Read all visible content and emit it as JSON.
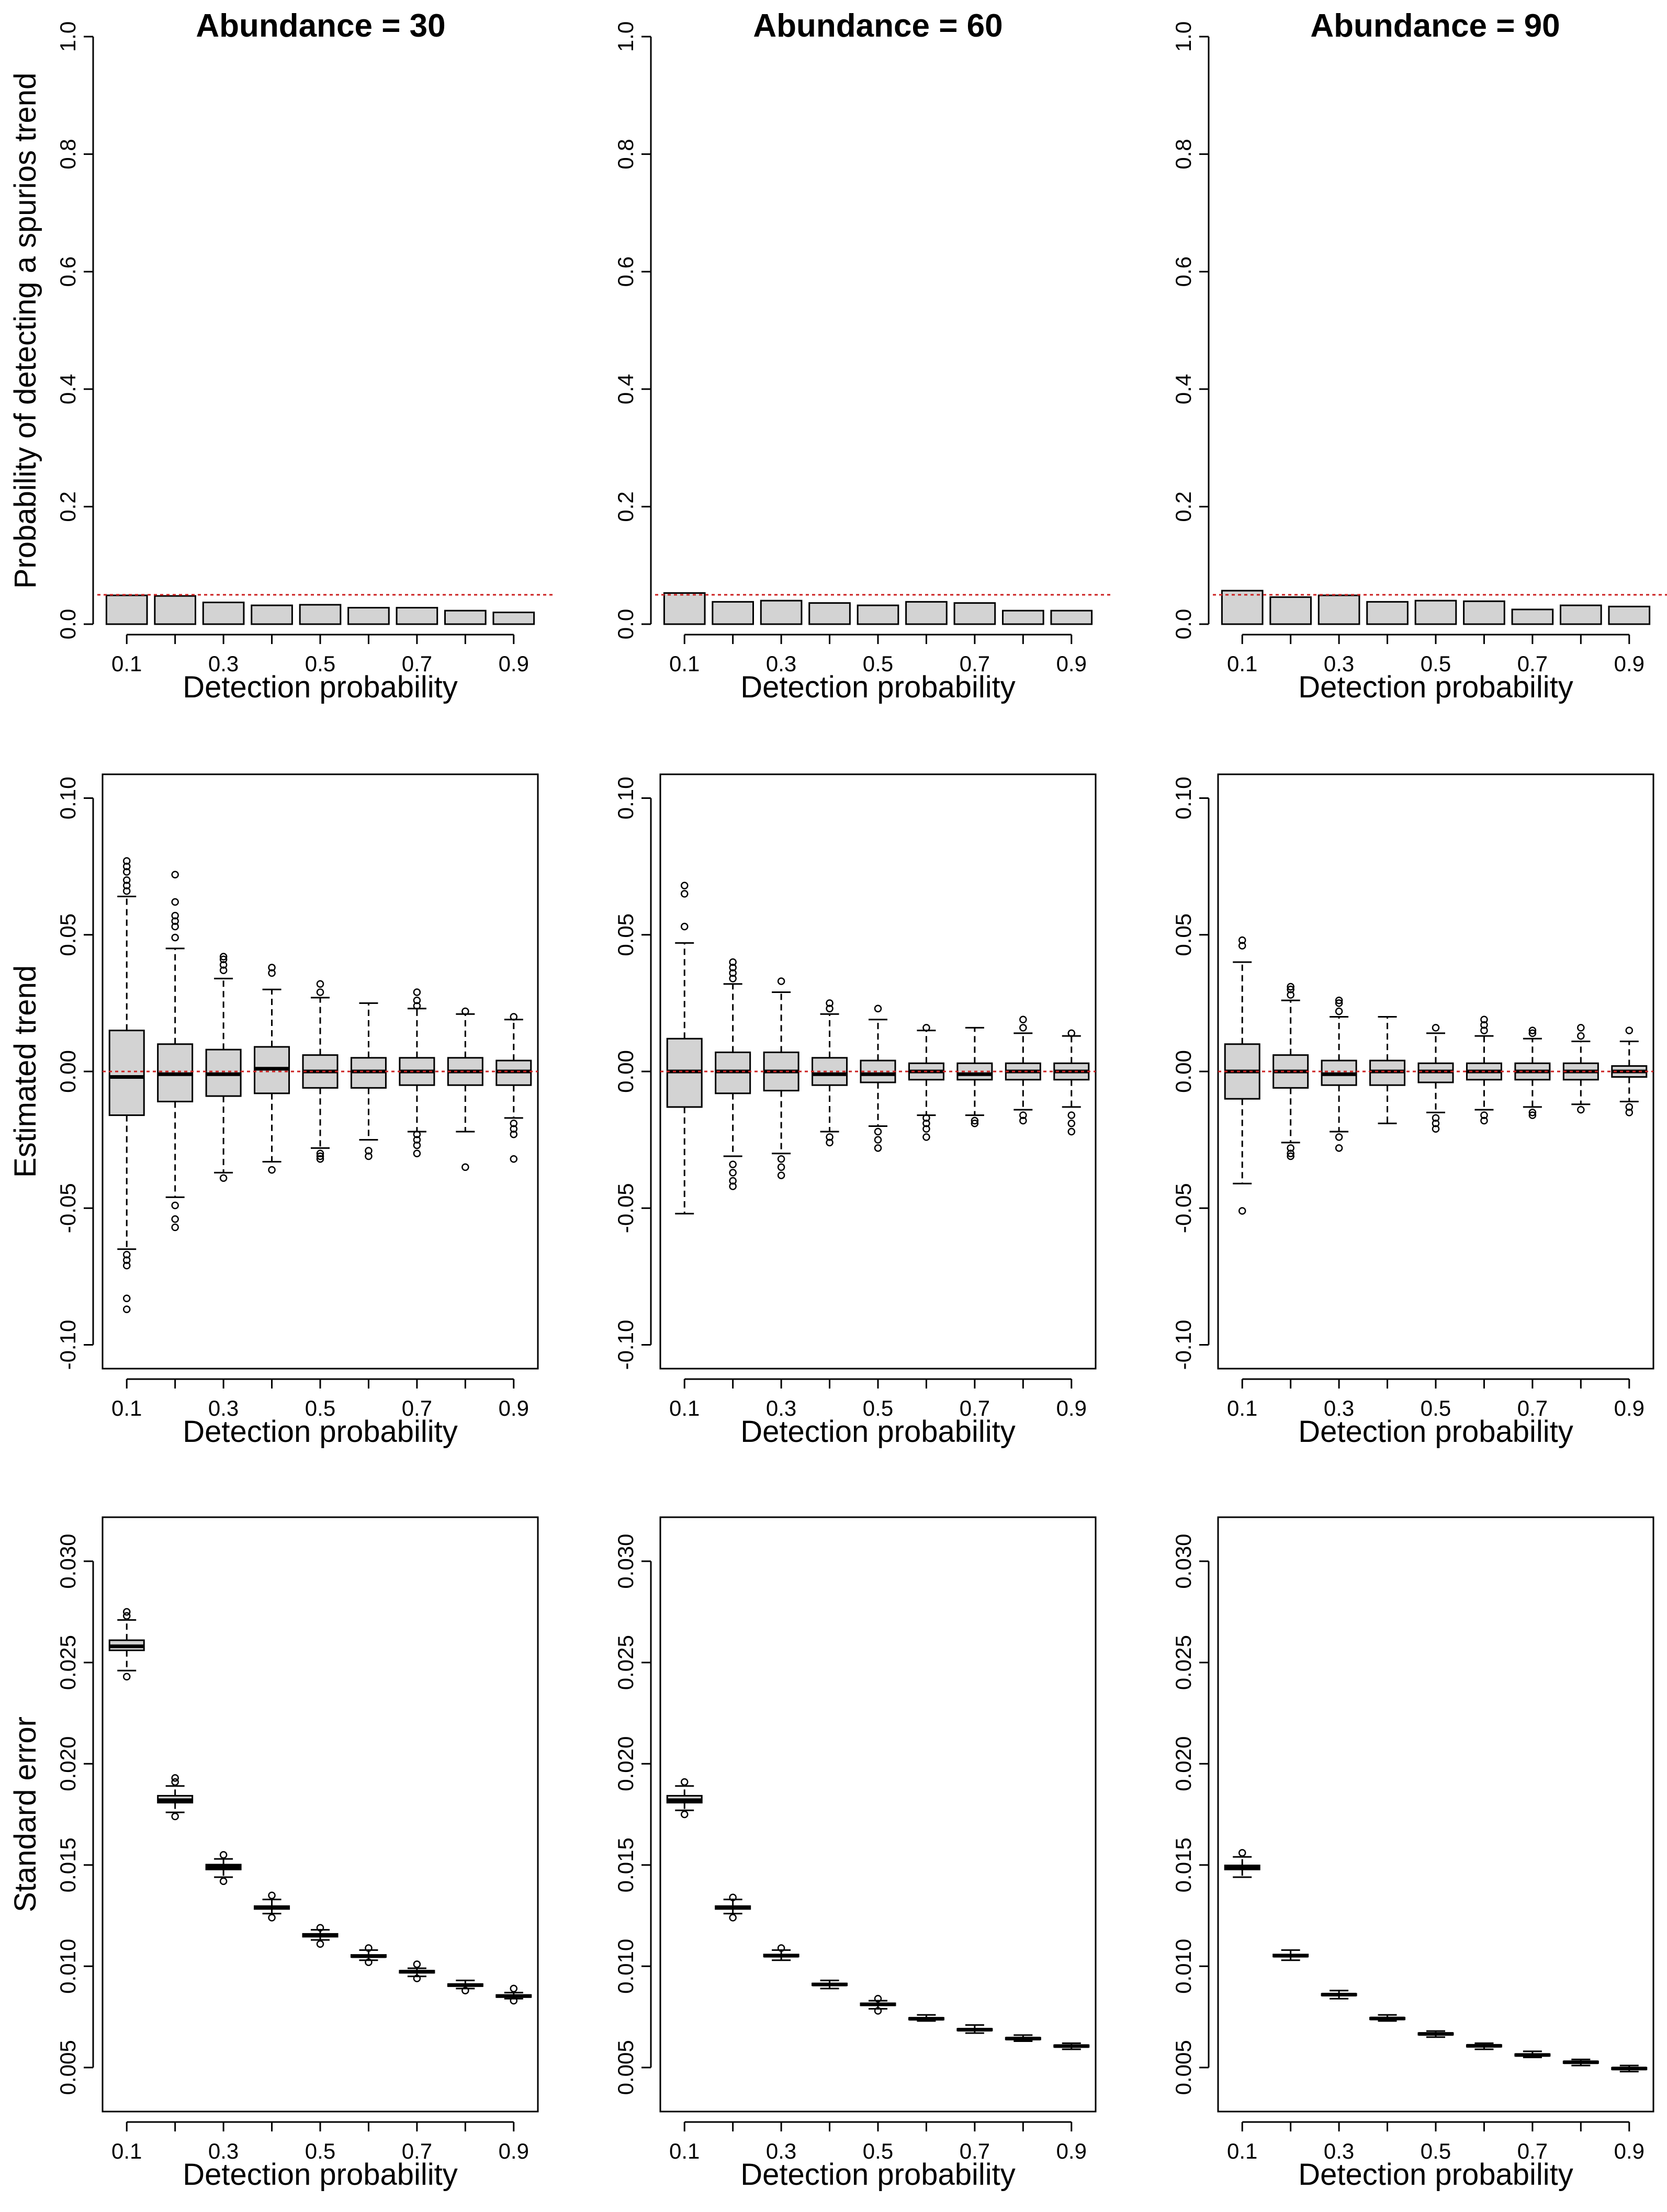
{
  "figure": {
    "column_titles": [
      "Abundance = 30",
      "Abundance = 60",
      "Abundance = 90"
    ],
    "row_ylabels": [
      "Probability of detecting a spurios trend",
      "Estimated trend",
      "Standard error"
    ],
    "xlabel": "Detection probability"
  },
  "colors": {
    "box_fill": "#d3d3d3",
    "reference_line": "#cc2222",
    "ink": "#000000"
  },
  "chart_data": [
    {
      "type": "bar",
      "row": 0,
      "col": 0,
      "title": "Abundance = 30",
      "xlabel": "Detection probability",
      "ylabel": "Probability of detecting a spurios trend",
      "categories": [
        "0.1",
        "0.2",
        "0.3",
        "0.4",
        "0.5",
        "0.6",
        "0.7",
        "0.8",
        "0.9"
      ],
      "x_tick_labels": [
        "0.1",
        "0.3",
        "0.5",
        "0.7",
        "0.9"
      ],
      "values": [
        0.049,
        0.048,
        0.037,
        0.032,
        0.033,
        0.028,
        0.028,
        0.023,
        0.02
      ],
      "ylim": [
        0,
        1
      ],
      "yticks": [
        "0.0",
        "0.2",
        "0.4",
        "0.6",
        "0.8",
        "1.0"
      ],
      "ref_line": 0.05
    },
    {
      "type": "bar",
      "row": 0,
      "col": 1,
      "title": "Abundance = 60",
      "xlabel": "Detection probability",
      "ylabel": "",
      "categories": [
        "0.1",
        "0.2",
        "0.3",
        "0.4",
        "0.5",
        "0.6",
        "0.7",
        "0.8",
        "0.9"
      ],
      "x_tick_labels": [
        "0.1",
        "0.3",
        "0.5",
        "0.7",
        "0.9"
      ],
      "values": [
        0.053,
        0.038,
        0.04,
        0.036,
        0.032,
        0.038,
        0.036,
        0.023,
        0.023
      ],
      "ylim": [
        0,
        1
      ],
      "yticks": [
        "0.0",
        "0.2",
        "0.4",
        "0.6",
        "0.8",
        "1.0"
      ],
      "ref_line": 0.05
    },
    {
      "type": "bar",
      "row": 0,
      "col": 2,
      "title": "Abundance = 90",
      "xlabel": "Detection probability",
      "ylabel": "",
      "categories": [
        "0.1",
        "0.2",
        "0.3",
        "0.4",
        "0.5",
        "0.6",
        "0.7",
        "0.8",
        "0.9"
      ],
      "x_tick_labels": [
        "0.1",
        "0.3",
        "0.5",
        "0.7",
        "0.9"
      ],
      "values": [
        0.057,
        0.046,
        0.049,
        0.038,
        0.04,
        0.039,
        0.025,
        0.032,
        0.03
      ],
      "ylim": [
        0,
        1
      ],
      "yticks": [
        "0.0",
        "0.2",
        "0.4",
        "0.6",
        "0.8",
        "1.0"
      ],
      "ref_line": 0.05
    },
    {
      "type": "box",
      "row": 1,
      "col": 0,
      "xlabel": "Detection probability",
      "ylabel": "Estimated trend",
      "categories": [
        "0.1",
        "0.2",
        "0.3",
        "0.4",
        "0.5",
        "0.6",
        "0.7",
        "0.8",
        "0.9"
      ],
      "x_tick_labels": [
        "0.1",
        "0.3",
        "0.5",
        "0.7",
        "0.9"
      ],
      "ylim": [
        -0.1,
        0.1
      ],
      "yticks": [
        "-0.10",
        "-0.05",
        "0.00",
        "0.05",
        "0.10"
      ],
      "ref_line": 0,
      "boxes": [
        {
          "q1": -0.016,
          "median": -0.002,
          "q3": 0.015,
          "wlo": -0.065,
          "whi": 0.064,
          "out": [
            0.066,
            0.068,
            0.07,
            0.073,
            0.075,
            0.077,
            -0.067,
            -0.069,
            -0.071,
            -0.083,
            -0.087
          ]
        },
        {
          "q1": -0.011,
          "median": -0.001,
          "q3": 0.01,
          "wlo": -0.046,
          "whi": 0.045,
          "out": [
            0.049,
            0.053,
            0.055,
            0.057,
            0.062,
            0.072,
            -0.049,
            -0.054,
            -0.057
          ]
        },
        {
          "q1": -0.009,
          "median": -0.001,
          "q3": 0.008,
          "wlo": -0.037,
          "whi": 0.034,
          "out": [
            0.037,
            0.039,
            0.041,
            0.042,
            -0.039
          ]
        },
        {
          "q1": -0.008,
          "median": 0.001,
          "q3": 0.009,
          "wlo": -0.033,
          "whi": 0.03,
          "out": [
            0.036,
            0.038,
            -0.036
          ]
        },
        {
          "q1": -0.006,
          "median": 0.0,
          "q3": 0.006,
          "wlo": -0.028,
          "whi": 0.027,
          "out": [
            0.029,
            0.032,
            -0.03,
            -0.031,
            -0.032
          ]
        },
        {
          "q1": -0.006,
          "median": 0.0,
          "q3": 0.005,
          "wlo": -0.025,
          "whi": 0.025,
          "out": [
            -0.029,
            -0.031
          ]
        },
        {
          "q1": -0.005,
          "median": 0.0,
          "q3": 0.005,
          "wlo": -0.022,
          "whi": 0.023,
          "out": [
            0.024,
            0.026,
            0.029,
            -0.023,
            -0.025,
            -0.027,
            -0.03
          ]
        },
        {
          "q1": -0.005,
          "median": 0.0,
          "q3": 0.005,
          "wlo": -0.022,
          "whi": 0.021,
          "out": [
            0.022,
            -0.035
          ]
        },
        {
          "q1": -0.005,
          "median": 0.0,
          "q3": 0.004,
          "wlo": -0.017,
          "whi": 0.019,
          "out": [
            0.02,
            -0.019,
            -0.021,
            -0.023,
            -0.032
          ]
        }
      ]
    },
    {
      "type": "box",
      "row": 1,
      "col": 1,
      "xlabel": "Detection probability",
      "ylabel": "",
      "categories": [
        "0.1",
        "0.2",
        "0.3",
        "0.4",
        "0.5",
        "0.6",
        "0.7",
        "0.8",
        "0.9"
      ],
      "x_tick_labels": [
        "0.1",
        "0.3",
        "0.5",
        "0.7",
        "0.9"
      ],
      "ylim": [
        -0.1,
        0.1
      ],
      "yticks": [
        "-0.10",
        "-0.05",
        "0.00",
        "0.05",
        "0.10"
      ],
      "ref_line": 0,
      "boxes": [
        {
          "q1": -0.013,
          "median": 0.0,
          "q3": 0.012,
          "wlo": -0.052,
          "whi": 0.047,
          "out": [
            0.053,
            0.065,
            0.068
          ]
        },
        {
          "q1": -0.008,
          "median": 0.0,
          "q3": 0.007,
          "wlo": -0.031,
          "whi": 0.032,
          "out": [
            0.034,
            0.036,
            0.038,
            0.04,
            -0.034,
            -0.037,
            -0.04,
            -0.042
          ]
        },
        {
          "q1": -0.007,
          "median": 0.0,
          "q3": 0.007,
          "wlo": -0.03,
          "whi": 0.029,
          "out": [
            0.033,
            -0.032,
            -0.035,
            -0.038
          ]
        },
        {
          "q1": -0.005,
          "median": -0.001,
          "q3": 0.005,
          "wlo": -0.022,
          "whi": 0.021,
          "out": [
            0.023,
            0.025,
            -0.024,
            -0.026
          ]
        },
        {
          "q1": -0.004,
          "median": -0.001,
          "q3": 0.004,
          "wlo": -0.02,
          "whi": 0.019,
          "out": [
            0.023,
            -0.022,
            -0.025,
            -0.028
          ]
        },
        {
          "q1": -0.003,
          "median": 0.0,
          "q3": 0.003,
          "wlo": -0.016,
          "whi": 0.015,
          "out": [
            0.016,
            -0.017,
            -0.019,
            -0.021,
            -0.024
          ]
        },
        {
          "q1": -0.003,
          "median": -0.001,
          "q3": 0.003,
          "wlo": -0.016,
          "whi": 0.016,
          "out": [
            -0.018,
            -0.019
          ]
        },
        {
          "q1": -0.003,
          "median": 0.0,
          "q3": 0.003,
          "wlo": -0.014,
          "whi": 0.014,
          "out": [
            0.016,
            0.019,
            -0.016,
            -0.018
          ]
        },
        {
          "q1": -0.003,
          "median": 0.0,
          "q3": 0.003,
          "wlo": -0.013,
          "whi": 0.013,
          "out": [
            0.014,
            -0.016,
            -0.019,
            -0.022
          ]
        }
      ]
    },
    {
      "type": "box",
      "row": 1,
      "col": 2,
      "xlabel": "Detection probability",
      "ylabel": "",
      "categories": [
        "0.1",
        "0.2",
        "0.3",
        "0.4",
        "0.5",
        "0.6",
        "0.7",
        "0.8",
        "0.9"
      ],
      "x_tick_labels": [
        "0.1",
        "0.3",
        "0.5",
        "0.7",
        "0.9"
      ],
      "ylim": [
        -0.1,
        0.1
      ],
      "yticks": [
        "-0.10",
        "-0.05",
        "0.00",
        "0.05",
        "0.10"
      ],
      "ref_line": 0,
      "boxes": [
        {
          "q1": -0.01,
          "median": 0.0,
          "q3": 0.01,
          "wlo": -0.041,
          "whi": 0.04,
          "out": [
            0.046,
            0.048,
            -0.051
          ]
        },
        {
          "q1": -0.006,
          "median": 0.0,
          "q3": 0.006,
          "wlo": -0.026,
          "whi": 0.026,
          "out": [
            0.028,
            0.03,
            0.031,
            -0.028,
            -0.03,
            -0.031
          ]
        },
        {
          "q1": -0.005,
          "median": -0.001,
          "q3": 0.004,
          "wlo": -0.022,
          "whi": 0.02,
          "out": [
            0.022,
            0.025,
            0.026,
            -0.024,
            -0.028
          ]
        },
        {
          "q1": -0.005,
          "median": 0.0,
          "q3": 0.004,
          "wlo": -0.019,
          "whi": 0.02,
          "out": []
        },
        {
          "q1": -0.004,
          "median": 0.0,
          "q3": 0.003,
          "wlo": -0.015,
          "whi": 0.014,
          "out": [
            0.016,
            -0.017,
            -0.019,
            -0.021
          ]
        },
        {
          "q1": -0.003,
          "median": 0.0,
          "q3": 0.003,
          "wlo": -0.014,
          "whi": 0.013,
          "out": [
            0.015,
            0.017,
            0.019,
            -0.016,
            -0.018
          ]
        },
        {
          "q1": -0.003,
          "median": 0.0,
          "q3": 0.003,
          "wlo": -0.013,
          "whi": 0.012,
          "out": [
            0.014,
            0.015,
            -0.015,
            -0.016
          ]
        },
        {
          "q1": -0.003,
          "median": 0.0,
          "q3": 0.003,
          "wlo": -0.012,
          "whi": 0.011,
          "out": [
            0.013,
            0.016,
            -0.014
          ]
        },
        {
          "q1": -0.002,
          "median": 0.0,
          "q3": 0.002,
          "wlo": -0.011,
          "whi": 0.011,
          "out": [
            0.015,
            -0.013,
            -0.015
          ]
        }
      ]
    },
    {
      "type": "box",
      "row": 2,
      "col": 0,
      "xlabel": "Detection probability",
      "ylabel": "Standard error",
      "categories": [
        "0.1",
        "0.2",
        "0.3",
        "0.4",
        "0.5",
        "0.6",
        "0.7",
        "0.8",
        "0.9"
      ],
      "x_tick_labels": [
        "0.1",
        "0.3",
        "0.5",
        "0.7",
        "0.9"
      ],
      "ylim": [
        0.004,
        0.031
      ],
      "yticks": [
        "0.005",
        "0.010",
        "0.015",
        "0.020",
        "0.025",
        "0.030"
      ],
      "ref_line": null,
      "boxes": [
        {
          "q1": 0.0256,
          "median": 0.0258,
          "q3": 0.0261,
          "wlo": 0.0246,
          "whi": 0.0271,
          "out": [
            0.0273,
            0.0275,
            0.0243
          ]
        },
        {
          "q1": 0.01808,
          "median": 0.0182,
          "q3": 0.01842,
          "wlo": 0.0176,
          "whi": 0.0189,
          "out": [
            0.0191,
            0.0193,
            0.0174
          ]
        },
        {
          "q1": 0.01478,
          "median": 0.0149,
          "q3": 0.01502,
          "wlo": 0.0144,
          "whi": 0.0153,
          "out": [
            0.0155,
            0.0142
          ]
        },
        {
          "q1": 0.01283,
          "median": 0.0129,
          "q3": 0.01297,
          "wlo": 0.0126,
          "whi": 0.0133,
          "out": [
            0.0135,
            0.0124
          ]
        },
        {
          "q1": 0.01146,
          "median": 0.01152,
          "q3": 0.0116,
          "wlo": 0.0113,
          "whi": 0.0118,
          "out": [
            0.0119,
            0.0111
          ]
        },
        {
          "q1": 0.01046,
          "median": 0.0105,
          "q3": 0.01056,
          "wlo": 0.0103,
          "whi": 0.0108,
          "out": [
            0.0109,
            0.0102
          ]
        },
        {
          "q1": 0.00968,
          "median": 0.00973,
          "q3": 0.00978,
          "wlo": 0.0095,
          "whi": 0.0099,
          "out": [
            0.0101,
            0.0094
          ]
        },
        {
          "q1": 0.00902,
          "median": 0.00907,
          "q3": 0.00912,
          "wlo": 0.0089,
          "whi": 0.0093,
          "out": [
            0.0088
          ]
        },
        {
          "q1": 0.00848,
          "median": 0.00853,
          "q3": 0.00858,
          "wlo": 0.0084,
          "whi": 0.0087,
          "out": [
            0.0089,
            0.0083
          ]
        }
      ]
    },
    {
      "type": "box",
      "row": 2,
      "col": 1,
      "xlabel": "Detection probability",
      "ylabel": "",
      "categories": [
        "0.1",
        "0.2",
        "0.3",
        "0.4",
        "0.5",
        "0.6",
        "0.7",
        "0.8",
        "0.9"
      ],
      "x_tick_labels": [
        "0.1",
        "0.3",
        "0.5",
        "0.7",
        "0.9"
      ],
      "ylim": [
        0.004,
        0.031
      ],
      "yticks": [
        "0.005",
        "0.010",
        "0.015",
        "0.020",
        "0.025",
        "0.030"
      ],
      "ref_line": null,
      "boxes": [
        {
          "q1": 0.01808,
          "median": 0.0182,
          "q3": 0.01842,
          "wlo": 0.0177,
          "whi": 0.0189,
          "out": [
            0.0191,
            0.0175
          ]
        },
        {
          "q1": 0.01283,
          "median": 0.0129,
          "q3": 0.01297,
          "wlo": 0.0126,
          "whi": 0.0133,
          "out": [
            0.0134,
            0.0124
          ]
        },
        {
          "q1": 0.01048,
          "median": 0.01052,
          "q3": 0.01058,
          "wlo": 0.0103,
          "whi": 0.0108,
          "out": [
            0.0109
          ]
        },
        {
          "q1": 0.00906,
          "median": 0.0091,
          "q3": 0.00915,
          "wlo": 0.0089,
          "whi": 0.0093,
          "out": []
        },
        {
          "q1": 0.00807,
          "median": 0.00812,
          "q3": 0.00817,
          "wlo": 0.0079,
          "whi": 0.0083,
          "out": [
            0.0084,
            0.0078
          ]
        },
        {
          "q1": 0.00737,
          "median": 0.00741,
          "q3": 0.00745,
          "wlo": 0.0073,
          "whi": 0.0076,
          "out": []
        },
        {
          "q1": 0.00683,
          "median": 0.00687,
          "q3": 0.00691,
          "wlo": 0.0067,
          "whi": 0.0071,
          "out": []
        },
        {
          "q1": 0.00639,
          "median": 0.00643,
          "q3": 0.00647,
          "wlo": 0.0063,
          "whi": 0.0066,
          "out": []
        },
        {
          "q1": 0.00602,
          "median": 0.00606,
          "q3": 0.0061,
          "wlo": 0.0059,
          "whi": 0.0062,
          "out": []
        }
      ]
    },
    {
      "type": "box",
      "row": 2,
      "col": 2,
      "xlabel": "Detection probability",
      "ylabel": "",
      "categories": [
        "0.1",
        "0.2",
        "0.3",
        "0.4",
        "0.5",
        "0.6",
        "0.7",
        "0.8",
        "0.9"
      ],
      "x_tick_labels": [
        "0.1",
        "0.3",
        "0.5",
        "0.7",
        "0.9"
      ],
      "ylim": [
        0.004,
        0.031
      ],
      "yticks": [
        "0.005",
        "0.010",
        "0.015",
        "0.020",
        "0.025",
        "0.030"
      ],
      "ref_line": null,
      "boxes": [
        {
          "q1": 0.01478,
          "median": 0.01488,
          "q3": 0.01498,
          "wlo": 0.0144,
          "whi": 0.0154,
          "out": [
            0.0156
          ]
        },
        {
          "q1": 0.01048,
          "median": 0.01052,
          "q3": 0.01058,
          "wlo": 0.0103,
          "whi": 0.0108,
          "out": []
        },
        {
          "q1": 0.00856,
          "median": 0.0086,
          "q3": 0.00864,
          "wlo": 0.0084,
          "whi": 0.0088,
          "out": []
        },
        {
          "q1": 0.00738,
          "median": 0.00742,
          "q3": 0.00746,
          "wlo": 0.0073,
          "whi": 0.0076,
          "out": []
        },
        {
          "q1": 0.00662,
          "median": 0.00666,
          "q3": 0.0067,
          "wlo": 0.0065,
          "whi": 0.0068,
          "out": []
        },
        {
          "q1": 0.00603,
          "median": 0.00607,
          "q3": 0.00611,
          "wlo": 0.0059,
          "whi": 0.0062,
          "out": []
        },
        {
          "q1": 0.00558,
          "median": 0.00562,
          "q3": 0.00566,
          "wlo": 0.0055,
          "whi": 0.0058,
          "out": []
        },
        {
          "q1": 0.00522,
          "median": 0.00526,
          "q3": 0.0053,
          "wlo": 0.0051,
          "whi": 0.0054,
          "out": []
        },
        {
          "q1": 0.00491,
          "median": 0.00495,
          "q3": 0.00499,
          "wlo": 0.0048,
          "whi": 0.0051,
          "out": []
        }
      ]
    }
  ]
}
